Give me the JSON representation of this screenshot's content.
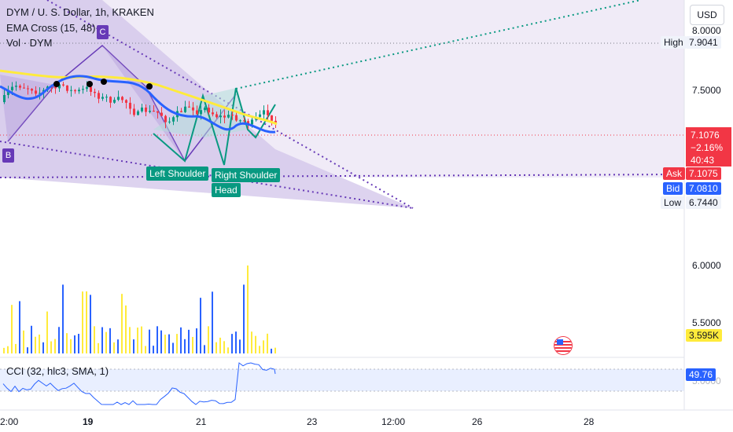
{
  "legend": {
    "symbol": "DYM / U. S. Dollar, 1h, KRAKEN",
    "ema": "EMA Cross (15, 48)",
    "vol": "Vol · DYM",
    "cci": "CCI (32, hlc3, SMA, 1)"
  },
  "currency_button": "USD",
  "price_axis": {
    "ticks": [
      "8.0000",
      "7.5000",
      "6.0000",
      "5.5000",
      "5.0000"
    ],
    "high_label": "High",
    "high_value": "7.9041",
    "current_price": "7.1076",
    "change": "−2.16%",
    "countdown": "40:43",
    "ask_label": "Ask",
    "ask_value": "7.1075",
    "bid_label": "Bid",
    "bid_value": "7.0810",
    "low_label": "Low",
    "low_value": "6.7440",
    "volume_value": "3.595K",
    "cci_value": "49.76"
  },
  "time_axis": {
    "ticks": [
      "2:00",
      "19",
      "21",
      "23",
      "12:00",
      "26",
      "28"
    ]
  },
  "pattern_labels": {
    "left_shoulder": "Left Shoulder",
    "right_shoulder": "Right Shoulder",
    "head": "Head",
    "point_b": "B",
    "point_c": "C"
  },
  "colors": {
    "up": "#089981",
    "down": "#f23645",
    "ema_fast": "#2962ff",
    "ema_slow": "#ffeb3b",
    "pattern": "#673ab7",
    "vol_blue": "#2962ff",
    "vol_yellow": "#ffeb3b"
  },
  "icons": {
    "flag": "us-flag-icon"
  }
}
